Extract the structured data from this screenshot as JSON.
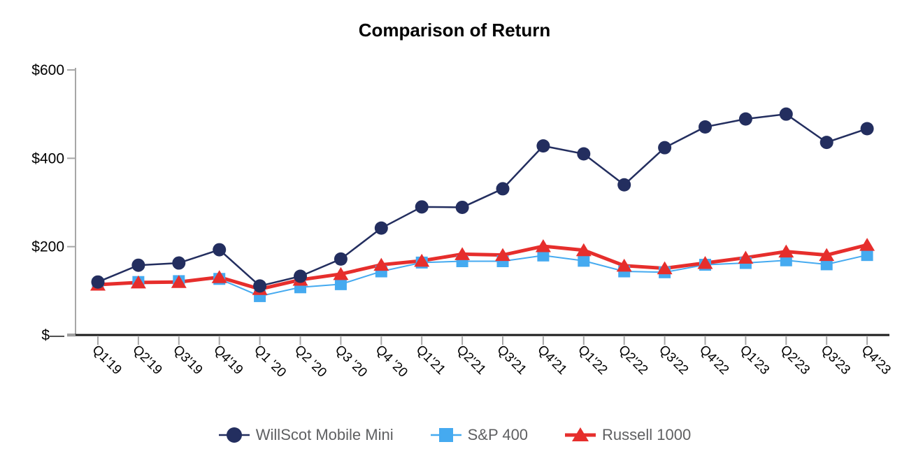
{
  "chart_data": {
    "type": "line",
    "title": "Comparison of Return",
    "categories": [
      "Q1'19",
      "Q2'19",
      "Q3'19",
      "Q4'19",
      "Q1 '20",
      "Q2 '20",
      "Q3 '20",
      "Q4 '20",
      "Q1'21",
      "Q2'21",
      "Q3'21",
      "Q4'21",
      "Q1'22",
      "Q2'22",
      "Q3'22",
      "Q4'22",
      "Q1'23",
      "Q2'23",
      "Q3'23",
      "Q4'23"
    ],
    "series": [
      {
        "name": "WillScot Mobile Mini",
        "marker": "circle",
        "color": "#232E5F",
        "values": [
          120,
          158,
          163,
          193,
          111,
          133,
          172,
          242,
          290,
          289,
          331,
          428,
          410,
          340,
          424,
          471,
          489,
          500,
          436,
          467
        ]
      },
      {
        "name": "S&P 400",
        "marker": "square",
        "color": "#45AAF0",
        "values": [
          115,
          120,
          122,
          127,
          88,
          108,
          115,
          144,
          164,
          167,
          167,
          180,
          168,
          144,
          142,
          159,
          163,
          169,
          160,
          181
        ]
      },
      {
        "name": "Russell 1000",
        "marker": "triangle",
        "color": "#E62E2C",
        "values": [
          114,
          119,
          120,
          131,
          104,
          125,
          138,
          159,
          168,
          183,
          181,
          201,
          192,
          157,
          151,
          163,
          175,
          189,
          181,
          204
        ]
      }
    ],
    "y_axis": {
      "ticks": [
        {
          "label": "$600",
          "value": 600
        },
        {
          "label": "$400",
          "value": 400
        },
        {
          "label": "$200",
          "value": 200
        },
        {
          "label": "$—",
          "value": 0
        }
      ],
      "range": [
        0,
        600
      ]
    },
    "xlabel": "",
    "ylabel": "",
    "grid": false,
    "legend_position": "bottom",
    "colors": {
      "y_axis_line": "#A7A7A7",
      "x_axis_line": "#1A1A1A",
      "tick": "#A7A7A7",
      "axis_label": "#000000",
      "legend_text": "#5F6062"
    }
  }
}
